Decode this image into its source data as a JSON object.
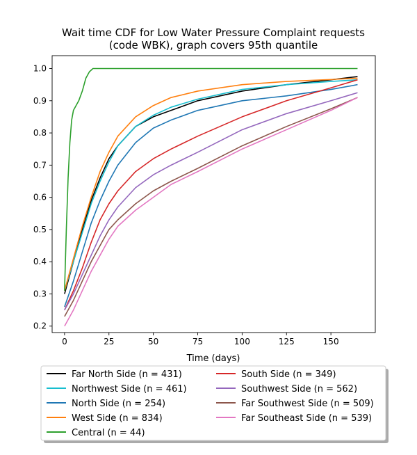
{
  "chart_data": {
    "type": "line",
    "title_line1": "Wait time CDF for Low Water Pressure Complaint  requests",
    "title_line2": "(code WBK), graph covers 95th quantile",
    "xlabel": "Time (days)",
    "ylabel": "",
    "xlim": [
      -7,
      175
    ],
    "ylim": [
      0.18,
      1.04
    ],
    "xticks": [
      0,
      25,
      50,
      75,
      100,
      125,
      150
    ],
    "yticks": [
      0.2,
      0.3,
      0.4,
      0.5,
      0.6,
      0.7,
      0.8,
      0.9,
      1.0
    ],
    "xtick_labels": [
      "0",
      "25",
      "50",
      "75",
      "100",
      "125",
      "150"
    ],
    "ytick_labels": [
      "0.2",
      "0.3",
      "0.4",
      "0.5",
      "0.6",
      "0.7",
      "0.8",
      "0.9",
      "1.0"
    ],
    "grid": false,
    "legend_position": "below",
    "series": [
      {
        "name": "Far North Side (n = 431)",
        "color": "#000000",
        "x": [
          0,
          5,
          10,
          15,
          20,
          25,
          30,
          40,
          50,
          60,
          75,
          100,
          125,
          150,
          165
        ],
        "y": [
          0.3,
          0.4,
          0.5,
          0.59,
          0.66,
          0.72,
          0.76,
          0.82,
          0.85,
          0.87,
          0.9,
          0.93,
          0.95,
          0.965,
          0.975
        ]
      },
      {
        "name": "Northwest Side (n = 461)",
        "color": "#17becf",
        "x": [
          0,
          5,
          10,
          15,
          20,
          25,
          30,
          40,
          50,
          60,
          75,
          100,
          125,
          150,
          165
        ],
        "y": [
          0.31,
          0.4,
          0.49,
          0.58,
          0.65,
          0.71,
          0.76,
          0.82,
          0.855,
          0.88,
          0.905,
          0.935,
          0.95,
          0.96,
          0.965
        ]
      },
      {
        "name": "North Side (n = 254)",
        "color": "#1f77b4",
        "x": [
          0,
          5,
          10,
          15,
          20,
          25,
          30,
          40,
          50,
          60,
          75,
          100,
          125,
          150,
          165
        ],
        "y": [
          0.26,
          0.34,
          0.43,
          0.52,
          0.59,
          0.65,
          0.7,
          0.77,
          0.815,
          0.84,
          0.87,
          0.9,
          0.915,
          0.935,
          0.95
        ]
      },
      {
        "name": "West Side (n = 834)",
        "color": "#ff7f0e",
        "x": [
          0,
          5,
          10,
          15,
          20,
          25,
          30,
          40,
          50,
          60,
          75,
          100,
          125,
          150,
          165
        ],
        "y": [
          0.31,
          0.41,
          0.51,
          0.6,
          0.68,
          0.74,
          0.79,
          0.85,
          0.885,
          0.91,
          0.93,
          0.95,
          0.96,
          0.966,
          0.97
        ]
      },
      {
        "name": "Central (n = 44)",
        "color": "#2ca02c",
        "x": [
          0,
          1,
          2,
          3,
          4,
          5,
          6,
          8,
          10,
          12,
          14,
          16,
          18,
          25,
          50,
          100,
          165
        ],
        "y": [
          0.31,
          0.5,
          0.66,
          0.77,
          0.84,
          0.87,
          0.88,
          0.9,
          0.93,
          0.97,
          0.99,
          1.0,
          1.0,
          1.0,
          1.0,
          1.0,
          1.0
        ]
      },
      {
        "name": "South Side (n = 349)",
        "color": "#d62728",
        "x": [
          0,
          5,
          10,
          15,
          20,
          25,
          30,
          40,
          50,
          60,
          75,
          100,
          125,
          150,
          165
        ],
        "y": [
          0.25,
          0.31,
          0.38,
          0.46,
          0.53,
          0.58,
          0.62,
          0.68,
          0.72,
          0.75,
          0.79,
          0.85,
          0.9,
          0.94,
          0.965
        ]
      },
      {
        "name": "Southwest Side (n = 562)",
        "color": "#9467bd",
        "x": [
          0,
          5,
          10,
          15,
          20,
          25,
          30,
          40,
          50,
          60,
          75,
          100,
          125,
          150,
          165
        ],
        "y": [
          0.25,
          0.3,
          0.36,
          0.42,
          0.48,
          0.53,
          0.57,
          0.63,
          0.67,
          0.7,
          0.74,
          0.81,
          0.86,
          0.9,
          0.925
        ]
      },
      {
        "name": "Far Southwest Side (n = 509)",
        "color": "#8c564b",
        "x": [
          0,
          5,
          10,
          15,
          20,
          25,
          30,
          40,
          50,
          60,
          75,
          100,
          125,
          150,
          165
        ],
        "y": [
          0.23,
          0.28,
          0.34,
          0.4,
          0.45,
          0.5,
          0.53,
          0.58,
          0.62,
          0.65,
          0.69,
          0.76,
          0.82,
          0.875,
          0.91
        ]
      },
      {
        "name": "Far Southeast Side (n = 539)",
        "color": "#e377c2",
        "x": [
          0,
          5,
          10,
          15,
          20,
          25,
          30,
          40,
          50,
          60,
          75,
          100,
          125,
          150,
          165
        ],
        "y": [
          0.2,
          0.25,
          0.31,
          0.37,
          0.42,
          0.47,
          0.51,
          0.56,
          0.6,
          0.64,
          0.68,
          0.75,
          0.81,
          0.87,
          0.91
        ]
      }
    ]
  }
}
